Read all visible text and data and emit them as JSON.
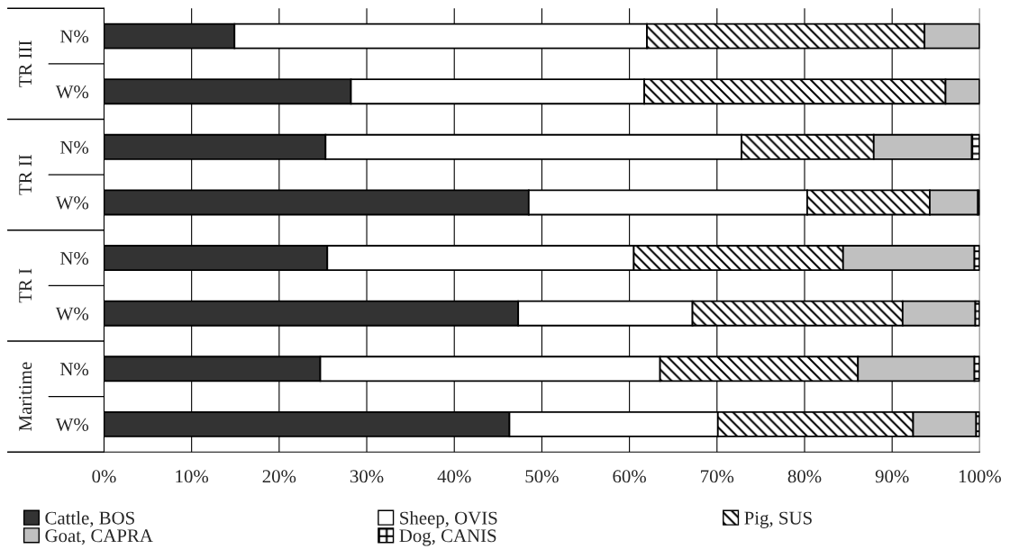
{
  "chart_data": {
    "type": "bar",
    "orientation": "horizontal",
    "stacked": true,
    "categories": [
      "N%",
      "W%",
      "N%",
      "W%",
      "N%",
      "W%",
      "N%",
      "W%"
    ],
    "annotations": [
      "TR III",
      "TR II",
      "TR I",
      "Maritime"
    ],
    "series": [
      {
        "name": "Cattle, BOS",
        "color": "#333333",
        "values": [
          14.9,
          28.2,
          25.3,
          48.5,
          25.5,
          47.3,
          24.7,
          46.3
        ]
      },
      {
        "name": "Sheep, OVIS",
        "color": "#ffffff",
        "values": [
          47.1,
          33.5,
          47.5,
          31.8,
          35.0,
          19.9,
          38.8,
          23.8
        ]
      },
      {
        "name": "Pig, SUS",
        "color": "#000000",
        "values": [
          31.7,
          34.4,
          15.1,
          14.0,
          23.9,
          24.0,
          22.6,
          22.3
        ]
      },
      {
        "name": "Goat, CAPRA",
        "color": "#c0c0c0",
        "values": [
          6.3,
          3.9,
          11.2,
          5.5,
          15.0,
          8.3,
          13.3,
          7.2
        ]
      },
      {
        "name": "Dog, CANIS",
        "color": "#000000",
        "values": [
          0.0,
          0.0,
          0.9,
          0.2,
          0.6,
          0.5,
          0.6,
          0.4
        ]
      }
    ],
    "xlim": [
      0,
      100
    ],
    "xticks": [
      {
        "value": 0,
        "label": "0%"
      },
      {
        "value": 10,
        "label": "10%"
      },
      {
        "value": 20,
        "label": "20%"
      },
      {
        "value": 30,
        "label": "30%"
      },
      {
        "value": 40,
        "label": "40%"
      },
      {
        "value": 50,
        "label": "50%"
      },
      {
        "value": 60,
        "label": "60%"
      },
      {
        "value": 70,
        "label": "70%"
      },
      {
        "value": 80,
        "label": "80%"
      },
      {
        "value": 90,
        "label": "90%"
      },
      {
        "value": 100,
        "label": "100%"
      }
    ],
    "grid": "x",
    "legend": "bottom"
  }
}
